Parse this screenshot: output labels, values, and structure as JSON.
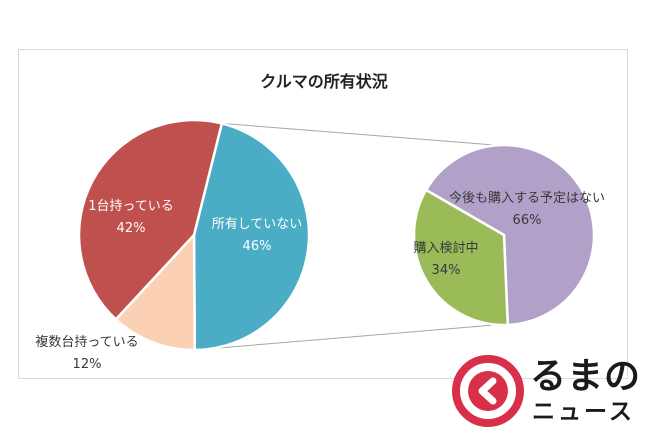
{
  "colors": {
    "owned_one": "#c0504d",
    "owned_multiple": "#fbd0b3",
    "not_owned": "#4bacc6",
    "no_plan": "#b1a0c7",
    "considering": "#9bbb59",
    "connector": "#a6a6a6",
    "logo_red": "#d9304a"
  },
  "chart_data": {
    "type": "pie",
    "title": "クルマの所有状況",
    "pies": [
      {
        "slices": [
          {
            "name": "所有していない",
            "value": 46,
            "label": "46%",
            "color": "#4bacc6"
          },
          {
            "name": "複数台持っている",
            "value": 12,
            "label": "12%",
            "color": "#fbd0b3"
          },
          {
            "name": "1台持っている",
            "value": 42,
            "label": "42%",
            "color": "#c0504d"
          }
        ]
      },
      {
        "slices": [
          {
            "name": "今後も購入する予定はない",
            "value": 66,
            "label": "66%",
            "color": "#b1a0c7"
          },
          {
            "name": "購入検討中",
            "value": 34,
            "label": "34%",
            "color": "#9bbb59"
          }
        ]
      }
    ]
  },
  "logo": {
    "line1": "るまの",
    "line2": "ニュース"
  }
}
